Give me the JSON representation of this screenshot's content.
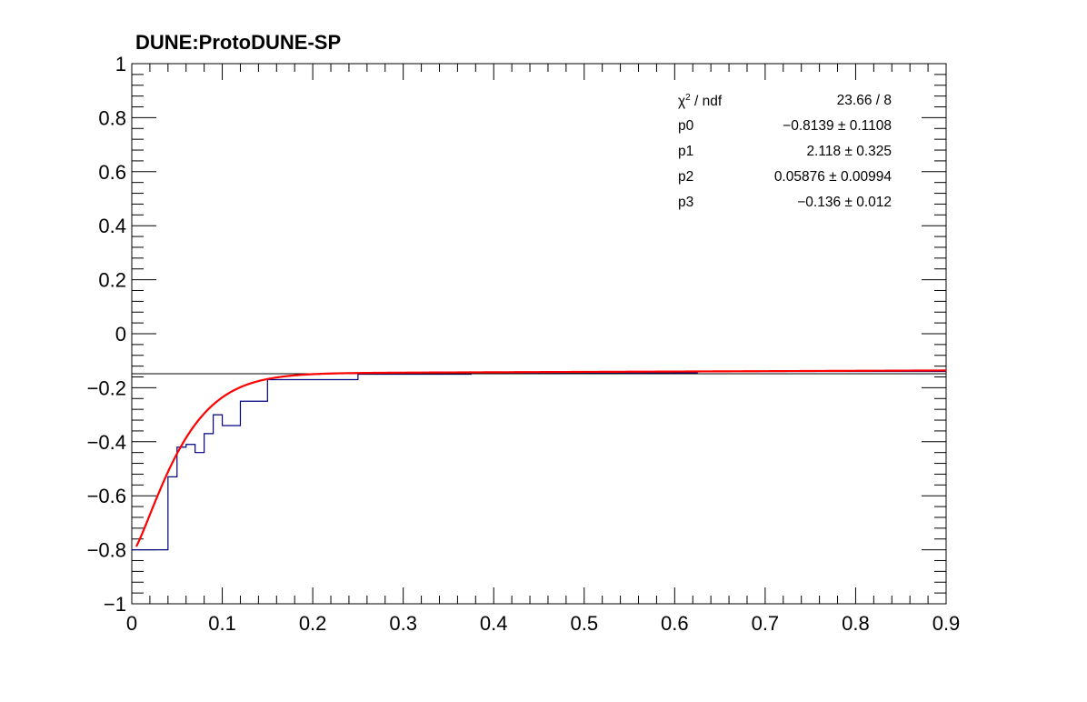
{
  "title": "DUNE:ProtoDUNE-SP",
  "stats": {
    "chi2_label": "/ ndf",
    "chi2_value": "23.66 / 8",
    "params": [
      {
        "name": "p0",
        "value": "−0.8139",
        "error": "0.1108"
      },
      {
        "name": "p1",
        "value": "2.118",
        "error": "0.325"
      },
      {
        "name": "p2",
        "value": "0.05876",
        "error": "0.00994"
      },
      {
        "name": "p3",
        "value": "−0.136",
        "error": "0.012"
      }
    ]
  },
  "chart_data": {
    "type": "line",
    "xlim": [
      0,
      0.9
    ],
    "ylim": [
      -1,
      1
    ],
    "x_ticks": [
      "0",
      "0.1",
      "0.2",
      "0.3",
      "0.4",
      "0.5",
      "0.6",
      "0.7",
      "0.8",
      "0.9"
    ],
    "y_ticks": [
      "−1",
      "−0.8",
      "−0.6",
      "−0.4",
      "−0.2",
      "0",
      "0.2",
      "0.4",
      "0.6",
      "0.8",
      "1"
    ],
    "histogram": {
      "color": "#000080",
      "bin_edges": [
        0,
        0.04,
        0.05,
        0.06,
        0.07,
        0.08,
        0.09,
        0.1,
        0.12,
        0.15,
        0.25,
        0.375,
        0.625,
        0.9
      ],
      "values": [
        -0.8,
        -0.53,
        -0.42,
        -0.41,
        -0.44,
        -0.37,
        -0.3,
        -0.34,
        -0.25,
        -0.17,
        -0.15,
        -0.145,
        -0.14
      ]
    },
    "fit": {
      "color": "#ff0000",
      "function": "p0 + (p3 - p0) * (1 - exp(-(x/p2)^... ))",
      "p0": -0.8139,
      "p1": 2.118,
      "p2": 0.05876,
      "p3": -0.136,
      "x_range": [
        0.005,
        0.9
      ]
    },
    "reference_line": {
      "y": -0.148,
      "color": "#000000"
    }
  }
}
